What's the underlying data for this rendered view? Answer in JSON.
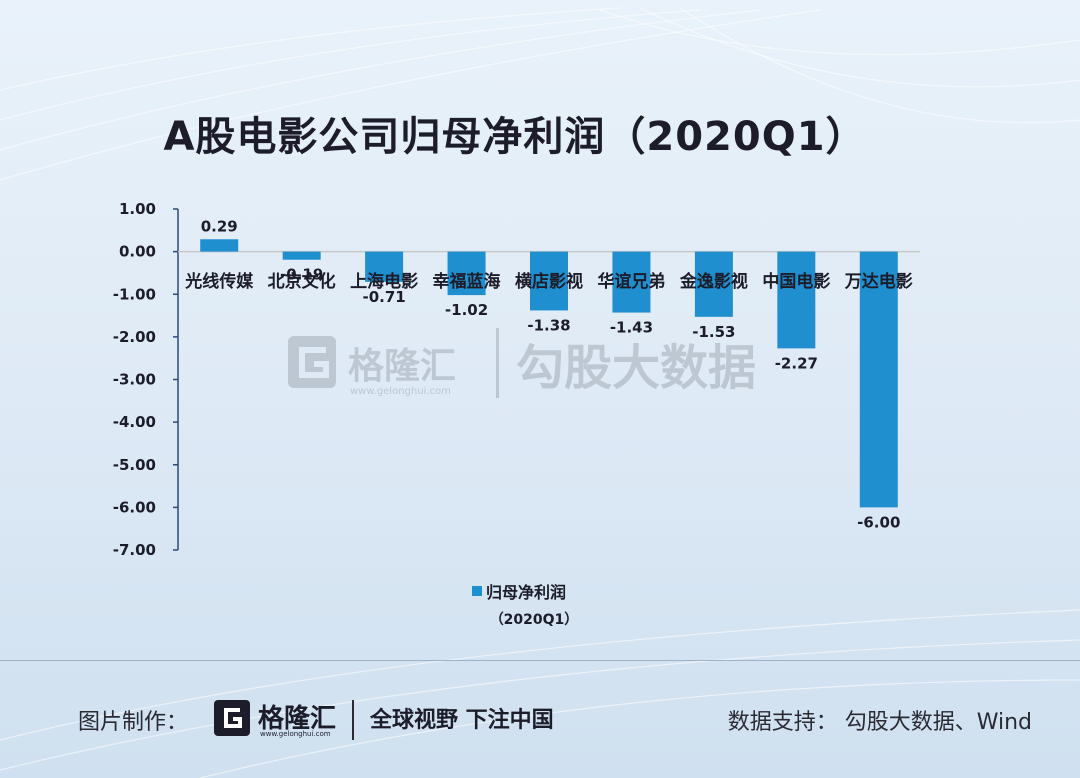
{
  "title": "A股电影公司归母净利润（2020Q1）",
  "watermark": {
    "brand": "格隆汇",
    "url": "www.gelonghui.com",
    "product": "勾股大数据"
  },
  "footer": {
    "credit_label": "图片制作：",
    "brand": "格隆汇",
    "brand_url": "www.gelonghui.com",
    "slogan": "全球视野 下注中国",
    "source": "数据支持： 勾股大数据、Wind"
  },
  "chart_data": {
    "type": "bar",
    "title": "A股电影公司归母净利润（2020Q1）",
    "categories": [
      "光线传媒",
      "北京文化",
      "上海电影",
      "幸福蓝海",
      "横店影视",
      "华谊兄弟",
      "金逸影视",
      "中国电影",
      "万达电影"
    ],
    "series": [
      {
        "name": "归母净利润（2020Q1）",
        "values": [
          0.29,
          -0.19,
          -0.71,
          -1.02,
          -1.38,
          -1.43,
          -1.53,
          -2.27,
          -6.0
        ],
        "color": "#1f8fd0"
      }
    ],
    "value_labels": [
      "0.29",
      "-0.19",
      "-0.71",
      "-1.02",
      "-1.38",
      "-1.43",
      "-1.53",
      "-2.27",
      "-6.00"
    ],
    "yticks": [
      "1.00",
      "0.00",
      "-1.00",
      "-2.00",
      "-3.00",
      "-4.00",
      "-5.00",
      "-6.00",
      "-7.00"
    ],
    "ylim": [
      -7,
      1
    ],
    "legend": {
      "line1": "归母净利润",
      "line2": "（2020Q1）",
      "position": "bottom"
    },
    "grid": false
  }
}
